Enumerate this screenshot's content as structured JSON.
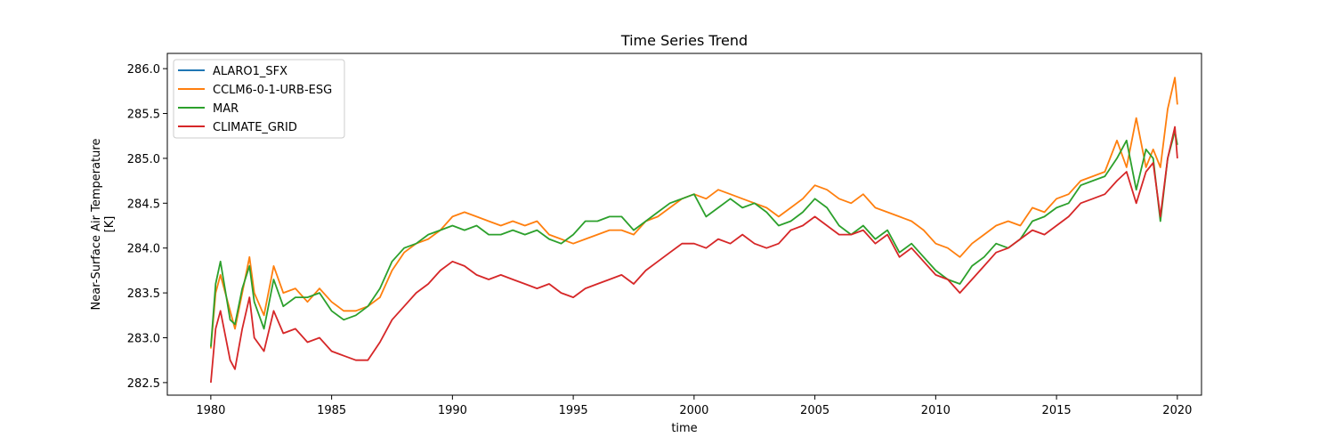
{
  "chart_data": {
    "type": "line",
    "title": "Time Series Trend",
    "xlabel": "time",
    "ylabel": "Near-Surface Air Temperature",
    "ylabel_unit": "[K]",
    "xlim": [
      1978.2,
      2021.0
    ],
    "ylim": [
      282.36,
      286.17
    ],
    "xticks": [
      1980,
      1985,
      1990,
      1995,
      2000,
      2005,
      2010,
      2015,
      2020
    ],
    "yticks": [
      282.5,
      283.0,
      283.5,
      284.0,
      284.5,
      285.0,
      285.5,
      286.0
    ],
    "ytick_labels": [
      "282.5",
      "283.0",
      "283.5",
      "284.0",
      "284.5",
      "285.0",
      "285.5",
      "286.0"
    ],
    "grid": false,
    "legend_position": "upper-left",
    "series": [
      {
        "name": "ALARO1_SFX",
        "color": "#1f77b4",
        "x": [],
        "values": []
      },
      {
        "name": "CCLM6-0-1-URB-ESG",
        "color": "#ff7f0e",
        "x": [
          1980.0,
          1980.2,
          1980.4,
          1980.8,
          1981.0,
          1981.3,
          1981.6,
          1981.8,
          1982.2,
          1982.6,
          1983.0,
          1983.5,
          1984.0,
          1984.5,
          1985.0,
          1985.5,
          1986.0,
          1986.5,
          1987.0,
          1987.5,
          1988.0,
          1988.5,
          1989.0,
          1989.5,
          1990.0,
          1990.5,
          1991.0,
          1991.5,
          1992.0,
          1992.5,
          1993.0,
          1993.5,
          1994.0,
          1994.5,
          1995.0,
          1995.5,
          1996.0,
          1996.5,
          1997.0,
          1997.5,
          1998.0,
          1998.5,
          1999.0,
          1999.5,
          2000.0,
          2000.5,
          2001.0,
          2001.5,
          2002.0,
          2002.5,
          2003.0,
          2003.5,
          2004.0,
          2004.5,
          2005.0,
          2005.5,
          2006.0,
          2006.5,
          2007.0,
          2007.5,
          2008.0,
          2008.5,
          2009.0,
          2009.5,
          2010.0,
          2010.5,
          2011.0,
          2011.5,
          2012.0,
          2012.5,
          2013.0,
          2013.5,
          2014.0,
          2014.5,
          2015.0,
          2015.5,
          2016.0,
          2016.5,
          2017.0,
          2017.5,
          2017.9,
          2018.3,
          2018.7,
          2019.0,
          2019.3,
          2019.6,
          2019.9,
          2020.0
        ],
        "values": [
          282.88,
          283.5,
          283.7,
          283.3,
          283.1,
          283.5,
          283.9,
          283.5,
          283.25,
          283.8,
          283.5,
          283.55,
          283.4,
          283.55,
          283.4,
          283.3,
          283.3,
          283.35,
          283.45,
          283.75,
          283.95,
          284.05,
          284.1,
          284.2,
          284.35,
          284.4,
          284.35,
          284.3,
          284.25,
          284.3,
          284.25,
          284.3,
          284.15,
          284.1,
          284.05,
          284.1,
          284.15,
          284.2,
          284.2,
          284.15,
          284.3,
          284.35,
          284.45,
          284.55,
          284.6,
          284.55,
          284.65,
          284.6,
          284.55,
          284.5,
          284.45,
          284.35,
          284.45,
          284.55,
          284.7,
          284.65,
          284.55,
          284.5,
          284.6,
          284.45,
          284.4,
          284.35,
          284.3,
          284.2,
          284.05,
          284.0,
          283.9,
          284.05,
          284.15,
          284.25,
          284.3,
          284.25,
          284.45,
          284.4,
          284.55,
          284.6,
          284.75,
          284.8,
          284.85,
          285.2,
          284.9,
          285.45,
          284.9,
          285.1,
          284.9,
          285.55,
          285.9,
          285.6
        ]
      },
      {
        "name": "MAR",
        "color": "#2ca02c",
        "x": [
          1980.0,
          1980.2,
          1980.4,
          1980.8,
          1981.0,
          1981.3,
          1981.6,
          1981.8,
          1982.2,
          1982.6,
          1983.0,
          1983.5,
          1984.0,
          1984.5,
          1985.0,
          1985.5,
          1986.0,
          1986.5,
          1987.0,
          1987.5,
          1988.0,
          1988.5,
          1989.0,
          1989.5,
          1990.0,
          1990.5,
          1991.0,
          1991.5,
          1992.0,
          1992.5,
          1993.0,
          1993.5,
          1994.0,
          1994.5,
          1995.0,
          1995.5,
          1996.0,
          1996.5,
          1997.0,
          1997.5,
          1998.0,
          1998.5,
          1999.0,
          1999.5,
          2000.0,
          2000.5,
          2001.0,
          2001.5,
          2002.0,
          2002.5,
          2003.0,
          2003.5,
          2004.0,
          2004.5,
          2005.0,
          2005.5,
          2006.0,
          2006.5,
          2007.0,
          2007.5,
          2008.0,
          2008.5,
          2009.0,
          2009.5,
          2010.0,
          2010.5,
          2011.0,
          2011.5,
          2012.0,
          2012.5,
          2013.0,
          2013.5,
          2014.0,
          2014.5,
          2015.0,
          2015.5,
          2016.0,
          2016.5,
          2017.0,
          2017.5,
          2017.9,
          2018.3,
          2018.7,
          2019.0,
          2019.3,
          2019.6,
          2019.9,
          2020.0
        ],
        "values": [
          282.9,
          283.6,
          283.85,
          283.2,
          283.15,
          283.55,
          283.8,
          283.4,
          283.1,
          283.65,
          283.35,
          283.45,
          283.45,
          283.5,
          283.3,
          283.2,
          283.25,
          283.35,
          283.55,
          283.85,
          284.0,
          284.05,
          284.15,
          284.2,
          284.25,
          284.2,
          284.25,
          284.15,
          284.15,
          284.2,
          284.15,
          284.2,
          284.1,
          284.05,
          284.15,
          284.3,
          284.3,
          284.35,
          284.35,
          284.2,
          284.3,
          284.4,
          284.5,
          284.55,
          284.6,
          284.35,
          284.45,
          284.55,
          284.45,
          284.5,
          284.4,
          284.25,
          284.3,
          284.4,
          284.55,
          284.45,
          284.25,
          284.15,
          284.25,
          284.1,
          284.2,
          283.95,
          284.05,
          283.9,
          283.75,
          283.65,
          283.6,
          283.8,
          283.9,
          284.05,
          284.0,
          284.1,
          284.3,
          284.35,
          284.45,
          284.5,
          284.7,
          284.75,
          284.8,
          285.0,
          285.2,
          284.65,
          285.1,
          285.0,
          284.3,
          285.0,
          285.3,
          285.15
        ]
      },
      {
        "name": "CLIMATE_GRID",
        "color": "#d62728",
        "x": [
          1980.0,
          1980.2,
          1980.4,
          1980.8,
          1981.0,
          1981.3,
          1981.6,
          1981.8,
          1982.2,
          1982.6,
          1983.0,
          1983.5,
          1984.0,
          1984.5,
          1985.0,
          1985.5,
          1986.0,
          1986.5,
          1987.0,
          1987.5,
          1988.0,
          1988.5,
          1989.0,
          1989.5,
          1990.0,
          1990.5,
          1991.0,
          1991.5,
          1992.0,
          1992.5,
          1993.0,
          1993.5,
          1994.0,
          1994.5,
          1995.0,
          1995.5,
          1996.0,
          1996.5,
          1997.0,
          1997.5,
          1998.0,
          1998.5,
          1999.0,
          1999.5,
          2000.0,
          2000.5,
          2001.0,
          2001.5,
          2002.0,
          2002.5,
          2003.0,
          2003.5,
          2004.0,
          2004.5,
          2005.0,
          2005.5,
          2006.0,
          2006.5,
          2007.0,
          2007.5,
          2008.0,
          2008.5,
          2009.0,
          2009.5,
          2010.0,
          2010.5,
          2011.0,
          2011.5,
          2012.0,
          2012.5,
          2013.0,
          2013.5,
          2014.0,
          2014.5,
          2015.0,
          2015.5,
          2016.0,
          2016.5,
          2017.0,
          2017.5,
          2017.9,
          2018.3,
          2018.7,
          2019.0,
          2019.3,
          2019.6,
          2019.9,
          2020.0
        ],
        "values": [
          282.5,
          283.1,
          283.3,
          282.75,
          282.65,
          283.1,
          283.45,
          283.0,
          282.85,
          283.3,
          283.05,
          283.1,
          282.95,
          283.0,
          282.85,
          282.8,
          282.75,
          282.75,
          282.95,
          283.2,
          283.35,
          283.5,
          283.6,
          283.75,
          283.85,
          283.8,
          283.7,
          283.65,
          283.7,
          283.65,
          283.6,
          283.55,
          283.6,
          283.5,
          283.45,
          283.55,
          283.6,
          283.65,
          283.7,
          283.6,
          283.75,
          283.85,
          283.95,
          284.05,
          284.05,
          284.0,
          284.1,
          284.05,
          284.15,
          284.05,
          284.0,
          284.05,
          284.2,
          284.25,
          284.35,
          284.25,
          284.15,
          284.15,
          284.2,
          284.05,
          284.15,
          283.9,
          284.0,
          283.85,
          283.7,
          283.65,
          283.5,
          283.65,
          283.8,
          283.95,
          284.0,
          284.1,
          284.2,
          284.15,
          284.25,
          284.35,
          284.5,
          284.55,
          284.6,
          284.75,
          284.85,
          284.5,
          284.85,
          284.95,
          284.35,
          285.0,
          285.35,
          285.0
        ]
      }
    ]
  }
}
